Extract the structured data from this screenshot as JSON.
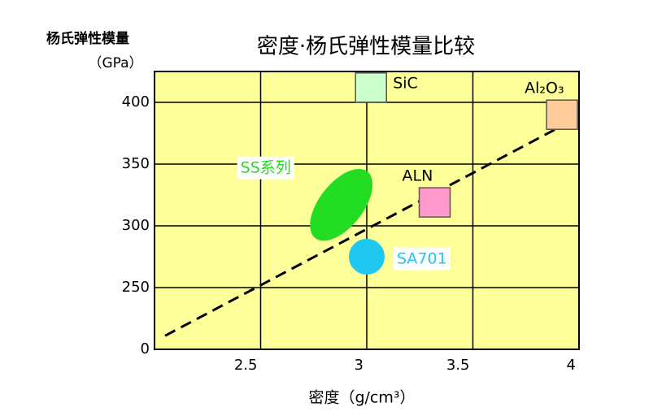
{
  "chart_data": {
    "type": "scatter",
    "title": "密度·杨氏弹性模量比较",
    "y_label": [
      "杨氏弹性模量",
      "（GPa）"
    ],
    "x_label": "密度（g/cm³）",
    "xlim": [
      2.0,
      4.0
    ],
    "xticks": [
      2.5,
      3,
      3.5,
      4
    ],
    "ylim": [
      200,
      425
    ],
    "yticks": [
      {
        "value": 200,
        "label": "0"
      },
      250,
      300,
      350,
      400
    ],
    "grid": true,
    "series": [
      {
        "name": "SiC",
        "color": "#ccffcc",
        "shape": "square",
        "x": [
          3.02
        ],
        "values": [
          412
        ]
      },
      {
        "name": "Al₂O₃",
        "color": "#ffcc99",
        "shape": "square",
        "x": [
          3.92
        ],
        "values": [
          390
        ]
      },
      {
        "name": "ALN",
        "color": "#ff99cc",
        "shape": "square",
        "x": [
          3.32
        ],
        "values": [
          319
        ]
      },
      {
        "name": "SS系列",
        "color": "#22dd22",
        "shape": "ellipse",
        "x": [
          2.88
        ],
        "values": [
          317
        ]
      },
      {
        "name": "SA701",
        "color": "#1ec8f0",
        "shape": "circle",
        "x": [
          3.0
        ],
        "values": [
          275
        ]
      }
    ],
    "trend": {
      "color": "#000000",
      "style": "dashed",
      "x": [
        2.05,
        3.92
      ],
      "values": [
        211,
        381
      ]
    }
  }
}
